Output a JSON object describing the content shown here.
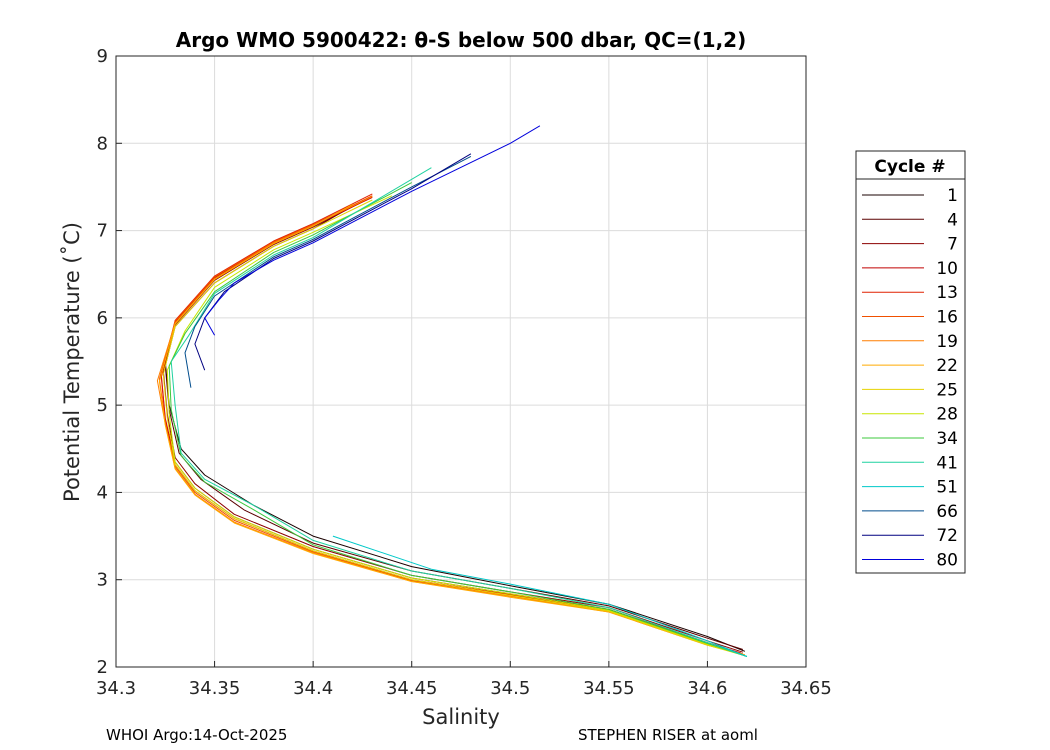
{
  "chart_data": {
    "type": "line",
    "title": "Argo WMO 5900422: θ-S below 500 dbar,  QC=(1,2)",
    "xlabel": "Salinity",
    "ylabel": "Potential Temperature (˚C)",
    "xlim": [
      34.3,
      34.65
    ],
    "ylim": [
      2,
      9
    ],
    "xticks": [
      "34.3",
      "34.35",
      "34.4",
      "34.45",
      "34.5",
      "34.55",
      "34.6",
      "34.65"
    ],
    "yticks": [
      "2",
      "3",
      "4",
      "5",
      "6",
      "7",
      "8",
      "9"
    ],
    "grid": true,
    "legend_title": "Cycle #",
    "legend_position": "right",
    "footer_left": "WHOI Argo:14-Oct-2025",
    "footer_right": "STEPHEN RISER at aoml",
    "series": [
      {
        "name": "1",
        "color": "#1a0000",
        "x": [
          34.619,
          34.6,
          34.55,
          34.5,
          34.45,
          34.4,
          34.37,
          34.345,
          34.333,
          34.327,
          34.325,
          34.33,
          34.35,
          34.38,
          34.4,
          34.42
        ],
        "y": [
          2.18,
          2.35,
          2.72,
          2.93,
          3.15,
          3.5,
          3.85,
          4.2,
          4.5,
          5.0,
          5.5,
          5.95,
          6.45,
          6.85,
          7.05,
          7.3
        ]
      },
      {
        "name": "4",
        "color": "#5a0000",
        "x": [
          34.618,
          34.6,
          34.55,
          34.5,
          34.45,
          34.4,
          34.365,
          34.343,
          34.332,
          34.327,
          34.325,
          34.33,
          34.35,
          34.38,
          34.4,
          34.42
        ],
        "y": [
          2.2,
          2.33,
          2.7,
          2.9,
          3.1,
          3.42,
          3.8,
          4.15,
          4.45,
          4.95,
          5.45,
          5.9,
          6.4,
          6.82,
          7.02,
          7.28
        ]
      },
      {
        "name": "7",
        "color": "#8b0000",
        "x": [
          34.618,
          34.6,
          34.55,
          34.5,
          34.45,
          34.4,
          34.36,
          34.34,
          34.33,
          34.326,
          34.324,
          34.33,
          34.35,
          34.38,
          34.4,
          34.425
        ],
        "y": [
          2.17,
          2.3,
          2.68,
          2.86,
          3.05,
          3.38,
          3.75,
          4.1,
          4.4,
          4.9,
          5.4,
          5.92,
          6.43,
          6.84,
          7.04,
          7.33
        ]
      },
      {
        "name": "10",
        "color": "#c00000",
        "x": [
          34.617,
          34.6,
          34.55,
          34.5,
          34.45,
          34.4,
          34.36,
          34.34,
          34.33,
          34.325,
          34.323,
          34.33,
          34.35,
          34.38,
          34.4,
          34.43
        ],
        "y": [
          2.16,
          2.28,
          2.66,
          2.84,
          3.02,
          3.35,
          3.72,
          4.05,
          4.35,
          4.85,
          5.35,
          5.95,
          6.46,
          6.86,
          7.06,
          7.38
        ]
      },
      {
        "name": "13",
        "color": "#e02000",
        "x": [
          34.617,
          34.6,
          34.55,
          34.5,
          34.45,
          34.4,
          34.36,
          34.34,
          34.33,
          34.325,
          34.323,
          34.33,
          34.35,
          34.38,
          34.4,
          34.43
        ],
        "y": [
          2.15,
          2.27,
          2.65,
          2.83,
          3.0,
          3.33,
          3.7,
          4.02,
          4.32,
          4.82,
          5.32,
          5.97,
          6.48,
          6.88,
          7.08,
          7.42
        ]
      },
      {
        "name": "16",
        "color": "#f05000",
        "x": [
          34.618,
          34.6,
          34.55,
          34.5,
          34.45,
          34.4,
          34.36,
          34.34,
          34.33,
          34.325,
          34.322,
          34.33,
          34.35,
          34.38,
          34.4,
          34.43
        ],
        "y": [
          2.15,
          2.26,
          2.64,
          2.82,
          2.99,
          3.32,
          3.68,
          4.0,
          4.3,
          4.8,
          5.3,
          5.96,
          6.47,
          6.87,
          7.07,
          7.4
        ]
      },
      {
        "name": "19",
        "color": "#ff7f00",
        "x": [
          34.619,
          34.6,
          34.55,
          34.5,
          34.45,
          34.4,
          34.36,
          34.34,
          34.33,
          34.325,
          34.321,
          34.33,
          34.35,
          34.38,
          34.4,
          34.43
        ],
        "y": [
          2.14,
          2.25,
          2.63,
          2.81,
          2.98,
          3.31,
          3.66,
          3.98,
          4.28,
          4.78,
          5.28,
          5.94,
          6.45,
          6.86,
          7.06,
          7.39
        ]
      },
      {
        "name": "22",
        "color": "#ffaa00",
        "x": [
          34.619,
          34.6,
          34.55,
          34.5,
          34.45,
          34.4,
          34.36,
          34.34,
          34.33,
          34.325,
          34.322,
          34.33,
          34.35,
          34.38,
          34.4,
          34.42
        ],
        "y": [
          2.14,
          2.25,
          2.63,
          2.8,
          2.98,
          3.3,
          3.65,
          3.97,
          4.27,
          4.77,
          5.27,
          5.93,
          6.44,
          6.85,
          7.05,
          7.3
        ]
      },
      {
        "name": "25",
        "color": "#e6d200",
        "x": [
          34.619,
          34.6,
          34.55,
          34.5,
          34.45,
          34.4,
          34.36,
          34.34,
          34.33,
          34.326,
          34.324,
          34.33,
          34.35,
          34.38,
          34.4,
          34.43
        ],
        "y": [
          2.13,
          2.25,
          2.64,
          2.82,
          3.0,
          3.33,
          3.7,
          4.02,
          4.32,
          4.85,
          5.35,
          5.9,
          6.4,
          6.82,
          7.02,
          7.35
        ]
      },
      {
        "name": "28",
        "color": "#c8e600",
        "x": [
          34.619,
          34.6,
          34.55,
          34.5,
          34.45,
          34.4,
          34.36,
          34.34,
          34.33,
          34.327,
          34.326,
          34.335,
          34.35,
          34.38,
          34.4,
          34.44
        ],
        "y": [
          2.13,
          2.26,
          2.65,
          2.84,
          3.02,
          3.35,
          3.72,
          4.05,
          4.35,
          4.9,
          5.4,
          5.85,
          6.35,
          6.78,
          6.98,
          7.4
        ]
      },
      {
        "name": "34",
        "color": "#3cc83c",
        "x": [
          34.62,
          34.6,
          34.55,
          34.5,
          34.45,
          34.4,
          34.37,
          34.345,
          34.333,
          34.328,
          34.327,
          34.335,
          34.35,
          34.38,
          34.4,
          34.45
        ],
        "y": [
          2.12,
          2.27,
          2.66,
          2.86,
          3.05,
          3.4,
          3.8,
          4.12,
          4.42,
          4.95,
          5.45,
          5.82,
          6.3,
          6.75,
          6.95,
          7.55
        ]
      },
      {
        "name": "41",
        "color": "#1ed2a0",
        "x": [
          34.62,
          34.6,
          34.55,
          34.5,
          34.45,
          34.4,
          34.37,
          34.345,
          34.333,
          34.33,
          34.328,
          34.337,
          34.35,
          34.38,
          34.4,
          34.46
        ],
        "y": [
          2.12,
          2.28,
          2.68,
          2.9,
          3.1,
          3.45,
          3.85,
          4.15,
          4.45,
          5.0,
          5.5,
          5.8,
          6.28,
          6.72,
          6.92,
          7.72
        ]
      },
      {
        "name": "51",
        "color": "#00c8c8",
        "x": [
          34.62,
          34.6,
          34.55,
          34.5,
          34.46,
          34.41
        ],
        "y": [
          2.12,
          2.3,
          2.72,
          2.95,
          3.12,
          3.5
        ]
      },
      {
        "name": "66",
        "color": "#004c8c",
        "x": [
          34.338,
          34.335,
          34.34,
          34.35,
          34.38,
          34.4,
          34.45,
          34.48
        ],
        "y": [
          5.2,
          5.6,
          5.9,
          6.25,
          6.7,
          6.9,
          7.5,
          7.85
        ]
      },
      {
        "name": "72",
        "color": "#000080",
        "x": [
          34.345,
          34.34,
          34.345,
          34.355,
          34.38,
          34.4,
          34.45,
          34.48
        ],
        "y": [
          5.4,
          5.7,
          6.0,
          6.3,
          6.68,
          6.88,
          7.48,
          7.88
        ]
      },
      {
        "name": "80",
        "color": "#0000dc",
        "x": [
          34.35,
          34.345,
          34.352,
          34.36,
          34.38,
          34.4,
          34.45,
          34.5,
          34.515
        ],
        "y": [
          5.8,
          6.0,
          6.2,
          6.4,
          6.66,
          6.86,
          7.45,
          8.0,
          8.2
        ]
      }
    ]
  }
}
